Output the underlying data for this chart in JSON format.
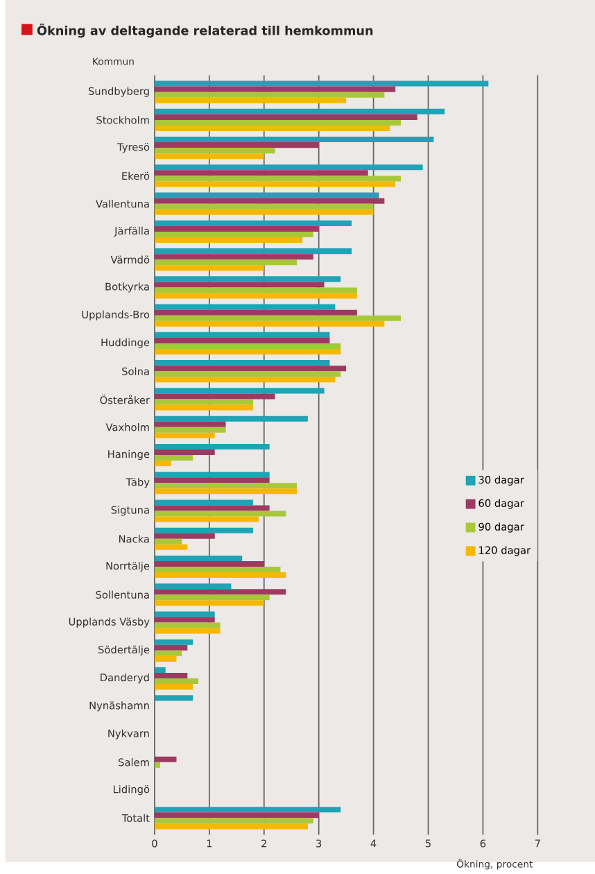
{
  "chart_data": {
    "type": "bar",
    "orientation": "horizontal",
    "title": "Ökning av deltagande relaterad till hemkommun",
    "ylabel": "Kommun",
    "xlabel": "Ökning, procent",
    "categories": [
      "Sundbyberg",
      "Stockholm",
      "Tyresö",
      "Ekerö",
      "Vallentuna",
      "Järfälla",
      "Värmdö",
      "Botkyrka",
      "Upplands-Bro",
      "Huddinge",
      "Solna",
      "Österåker",
      "Vaxholm",
      "Haninge",
      "Täby",
      "Sigtuna",
      "Nacka",
      "Norrtälje",
      "Sollentuna",
      "Upplands Väsby",
      "Södertälje",
      "Danderyd",
      "Nynäshamn",
      "Nykvarn",
      "Salem",
      "Lidingö",
      "Totalt"
    ],
    "series": [
      {
        "name": "30 dagar",
        "color": "#1fa3b5",
        "values": [
          6.1,
          5.3,
          5.1,
          4.9,
          4.1,
          3.6,
          3.6,
          3.4,
          3.3,
          3.2,
          3.2,
          3.1,
          2.8,
          2.1,
          2.1,
          1.8,
          1.8,
          1.6,
          1.4,
          1.1,
          0.7,
          0.2,
          0.7,
          0,
          0,
          0,
          3.4
        ]
      },
      {
        "name": "60 dagar",
        "color": "#9e3a62",
        "values": [
          4.4,
          4.8,
          3.0,
          3.9,
          4.2,
          3.0,
          2.9,
          3.1,
          3.7,
          3.2,
          3.5,
          2.2,
          1.3,
          1.1,
          2.1,
          2.1,
          1.1,
          2.0,
          2.4,
          1.1,
          0.6,
          0.6,
          0,
          0,
          0.4,
          0,
          3.0
        ]
      },
      {
        "name": "90 dagar",
        "color": "#a8c83a",
        "values": [
          4.2,
          4.5,
          2.2,
          4.5,
          4.0,
          2.9,
          2.6,
          3.7,
          4.5,
          3.4,
          3.4,
          1.8,
          1.3,
          0.7,
          2.6,
          2.4,
          0.5,
          2.3,
          2.1,
          1.2,
          0.5,
          0.8,
          0,
          0,
          0.1,
          0,
          2.9
        ]
      },
      {
        "name": "120 dagar",
        "color": "#f5b800",
        "values": [
          3.5,
          4.3,
          2.0,
          4.4,
          4.0,
          2.7,
          2.0,
          3.7,
          4.2,
          3.4,
          3.3,
          1.8,
          1.1,
          0.3,
          2.6,
          1.9,
          0.6,
          2.4,
          2.0,
          1.2,
          0.4,
          0.7,
          0,
          0,
          0,
          0,
          2.8
        ]
      }
    ],
    "xlim": [
      0,
      7
    ],
    "xticks": [
      0,
      1,
      2,
      3,
      4,
      5,
      6,
      7
    ],
    "grid": "x",
    "legend": "right"
  }
}
